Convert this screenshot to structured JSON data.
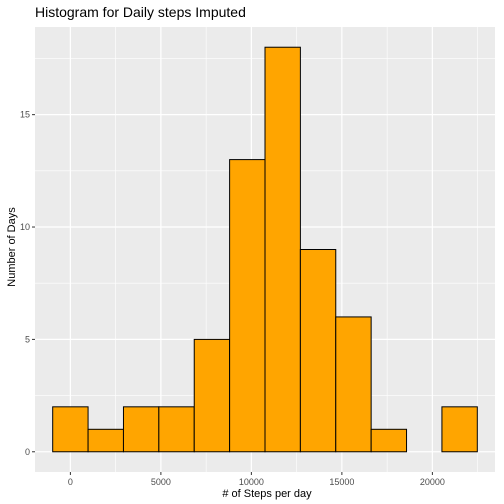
{
  "chart_data": {
    "type": "bar",
    "title": "Histogram for Daily steps Imputed",
    "xlabel": "# of Steps per day",
    "ylabel": "Number of Days",
    "bin_width": 1955,
    "bins": [
      {
        "center": 0,
        "count": 2
      },
      {
        "center": 1955,
        "count": 1
      },
      {
        "center": 3910,
        "count": 2
      },
      {
        "center": 5865,
        "count": 2
      },
      {
        "center": 7820,
        "count": 5
      },
      {
        "center": 9775,
        "count": 13
      },
      {
        "center": 11730,
        "count": 18
      },
      {
        "center": 13685,
        "count": 9
      },
      {
        "center": 15640,
        "count": 6
      },
      {
        "center": 17595,
        "count": 1
      },
      {
        "center": 19550,
        "count": 0
      },
      {
        "center": 21505,
        "count": 2
      }
    ],
    "xlim": [
      -1955,
      23460
    ],
    "ylim": [
      -0.9,
      18.9
    ],
    "x_ticks": [
      0,
      5000,
      10000,
      15000,
      20000
    ],
    "y_ticks": [
      0,
      5,
      10,
      15
    ],
    "grid": true,
    "colors": {
      "bar_fill": "#FFA500",
      "bar_stroke": "#000000",
      "panel_bg": "#EBEBEB",
      "grid": "#FFFFFF"
    }
  }
}
